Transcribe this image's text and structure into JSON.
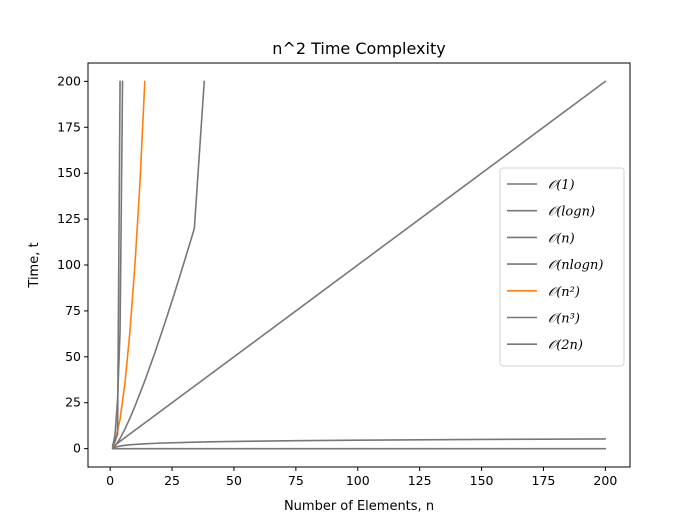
{
  "chart_data": {
    "type": "line",
    "title": "n^2 Time Complexity",
    "xlabel": "Number of Elements, n",
    "ylabel": "Time, t",
    "xlim": [
      -8.95,
      209.95
    ],
    "ylim": [
      -10,
      210
    ],
    "xticks": [
      0,
      25,
      50,
      75,
      100,
      125,
      150,
      175,
      200
    ],
    "yticks": [
      0,
      25,
      50,
      75,
      100,
      125,
      150,
      175,
      200
    ],
    "grid": false,
    "legend_position": "center-right",
    "colors": {
      "default": "#777777",
      "highlight": "#ff7f0e"
    },
    "series": [
      {
        "name": "𝒪(1)",
        "legend": "𝒪(1)",
        "color": "#777777",
        "highlight": false,
        "x": [
          1,
          200
        ],
        "y": [
          0,
          0
        ]
      },
      {
        "name": "𝒪(logn)",
        "legend": "𝒪(logn)",
        "color": "#777777",
        "highlight": false,
        "x": [
          1,
          2,
          3,
          4,
          6,
          8,
          10,
          15,
          20,
          30,
          40,
          50,
          75,
          100,
          125,
          150,
          175,
          200
        ],
        "y": [
          0,
          0.69,
          1.1,
          1.39,
          1.79,
          2.08,
          2.3,
          2.71,
          3.0,
          3.4,
          3.69,
          3.91,
          4.32,
          4.61,
          4.83,
          5.01,
          5.16,
          5.3
        ]
      },
      {
        "name": "𝒪(n)",
        "legend": "𝒪(n)",
        "color": "#777777",
        "highlight": false,
        "x": [
          1,
          200
        ],
        "y": [
          1,
          200
        ]
      },
      {
        "name": "𝒪(nlogn)",
        "legend": "𝒪(nlogn)",
        "color": "#777777",
        "highlight": false,
        "x": [
          1,
          2,
          4,
          6,
          8,
          10,
          14,
          18,
          22,
          26,
          30,
          34,
          38
        ],
        "y": [
          0,
          1.39,
          5.55,
          10.75,
          16.64,
          23.03,
          36.95,
          52.03,
          68.0,
          84.71,
          102.04,
          119.9,
          200
        ]
      },
      {
        "name": "𝒪(n²)",
        "legend": "𝒪(n²)",
        "color": "#ff7f0e",
        "highlight": true,
        "x": [
          1,
          2,
          4,
          6,
          8,
          10,
          12,
          14
        ],
        "y": [
          1,
          4,
          16,
          36,
          64,
          100,
          144,
          200
        ]
      },
      {
        "name": "𝒪(n³)",
        "legend": "𝒪(n³)",
        "color": "#777777",
        "highlight": false,
        "x": [
          1,
          2,
          3,
          4,
          5
        ],
        "y": [
          1,
          8,
          27,
          64,
          200
        ]
      },
      {
        "name": "𝒪(2n)",
        "legend": "𝒪(2n)",
        "color": "#777777",
        "highlight": false,
        "x": [
          1,
          2,
          3,
          4
        ],
        "y": [
          2,
          4,
          8,
          200
        ]
      }
    ]
  }
}
